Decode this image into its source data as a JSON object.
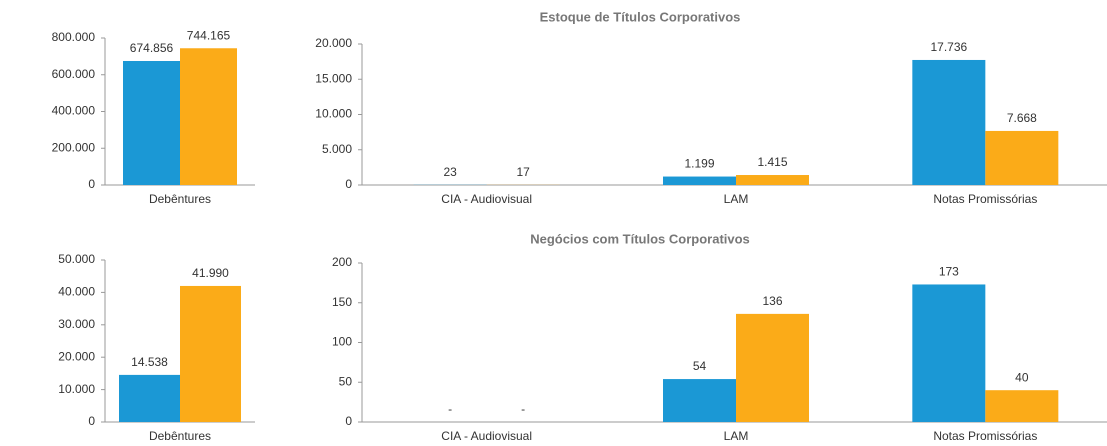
{
  "chart_data": [
    {
      "type": "bar",
      "categories": [
        "Debêntures"
      ],
      "series": [
        {
          "color": "#1b98d5",
          "values": [
            674856
          ],
          "value_labels": [
            "674.856"
          ]
        },
        {
          "color": "#fbab18",
          "values": [
            744165
          ],
          "value_labels": [
            "744.165"
          ]
        }
      ],
      "ylim": [
        0,
        800000
      ],
      "yticks": [
        0,
        {
          "value": 200000,
          "label": "200.000"
        },
        {
          "value": 400000,
          "label": "400.000"
        },
        {
          "value": 600000,
          "label": "600.000"
        },
        {
          "value": 800000,
          "label": "800.000"
        }
      ]
    },
    {
      "type": "bar",
      "title": "Estoque  de Títulos Corporativos",
      "categories": [
        "CIA - Audiovisual",
        "LAM",
        "Notas Promissórias"
      ],
      "series": [
        {
          "color": "#1b98d5",
          "values": [
            23,
            1199,
            17736
          ],
          "value_labels": [
            "23",
            "1.199",
            "17.736"
          ]
        },
        {
          "color": "#fbab18",
          "values": [
            17,
            1415,
            7668
          ],
          "value_labels": [
            "17",
            "1.415",
            "7.668"
          ]
        }
      ],
      "ylim": [
        0,
        20000
      ],
      "yticks": [
        0,
        {
          "value": 5000,
          "label": "5.000"
        },
        {
          "value": 10000,
          "label": "10.000"
        },
        {
          "value": 15000,
          "label": "15.000"
        },
        {
          "value": 20000,
          "label": "20.000"
        }
      ]
    },
    {
      "type": "bar",
      "categories": [
        "Debêntures"
      ],
      "series": [
        {
          "color": "#1b98d5",
          "values": [
            14538
          ],
          "value_labels": [
            "14.538"
          ]
        },
        {
          "color": "#fbab18",
          "values": [
            41990
          ],
          "value_labels": [
            "41.990"
          ]
        }
      ],
      "ylim": [
        0,
        50000
      ],
      "yticks": [
        0,
        {
          "value": 10000,
          "label": "10.000"
        },
        {
          "value": 20000,
          "label": "20.000"
        },
        {
          "value": 30000,
          "label": "30.000"
        },
        {
          "value": 40000,
          "label": "40.000"
        },
        {
          "value": 50000,
          "label": "50.000"
        }
      ]
    },
    {
      "type": "bar",
      "title": "Negócios com Títulos Corporativos",
      "categories": [
        "CIA - Audiovisual",
        "LAM",
        "Notas Promissórias"
      ],
      "series": [
        {
          "color": "#1b98d5",
          "values": [
            0,
            54,
            173
          ],
          "value_labels": [
            "-",
            "54",
            "173"
          ]
        },
        {
          "color": "#fbab18",
          "values": [
            0,
            136,
            40
          ],
          "value_labels": [
            "-",
            "136",
            "40"
          ]
        }
      ],
      "ylim": [
        0,
        200
      ],
      "yticks": [
        0,
        50,
        100,
        150,
        200
      ]
    }
  ]
}
